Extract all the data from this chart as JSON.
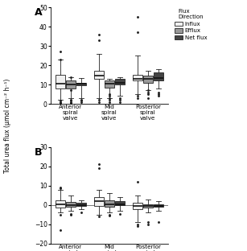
{
  "panel_A": {
    "ylim": [
      0,
      50
    ],
    "yticks": [
      0,
      10,
      20,
      30,
      40,
      50
    ],
    "groups": [
      "Anterior\nspiral\nvalve",
      "Mid\nspiral\nvalve",
      "Posterior\nspiral\nvalve"
    ],
    "influx": {
      "anterior": {
        "q1": 8,
        "median": 10.5,
        "q3": 15,
        "whislo": 2,
        "whishi": 23,
        "fliers": [
          0.5,
          1.0,
          1.5,
          23.0,
          27.0
        ]
      },
      "mid": {
        "q1": 13,
        "median": 14.5,
        "q3": 17,
        "whislo": 3,
        "whishi": 26,
        "fliers": [
          1.0,
          2.0,
          33.0,
          36.0
        ]
      },
      "posterior": {
        "q1": 12,
        "median": 13,
        "q3": 15,
        "whislo": 5,
        "whishi": 25,
        "fliers": [
          3.0,
          4.0,
          37.0,
          45.0
        ]
      }
    },
    "efflux": {
      "anterior": {
        "q1": 8,
        "median": 10,
        "q3": 12,
        "whislo": 3,
        "whishi": 14,
        "fliers": [
          0.5,
          1.0,
          1.5,
          2.0,
          7.0,
          14.0
        ]
      },
      "mid": {
        "q1": 8.5,
        "median": 10.5,
        "q3": 12,
        "whislo": 3,
        "whishi": 13,
        "fliers": [
          1.0,
          2.0,
          3.0,
          4.0,
          5.0
        ]
      },
      "posterior": {
        "q1": 11,
        "median": 13,
        "q3": 14.5,
        "whislo": 7,
        "whishi": 17,
        "fliers": [
          3.0,
          5.0,
          6.0,
          7.0
        ]
      }
    },
    "netflux": {
      "anterior": {
        "q1": 9.5,
        "median": 10.5,
        "q3": 11,
        "whislo": 3,
        "whishi": 13.5,
        "fliers": [
          1.0,
          1.5,
          2.0
        ]
      },
      "mid": {
        "q1": 10,
        "median": 11,
        "q3": 13,
        "whislo": 4,
        "whishi": 14,
        "fliers": [
          1.0,
          2.0,
          3.0
        ]
      },
      "posterior": {
        "q1": 12,
        "median": 13.5,
        "q3": 16.5,
        "whislo": 8,
        "whishi": 18,
        "fliers": [
          4.0,
          5.0,
          6.0
        ]
      }
    }
  },
  "panel_B": {
    "ylim": [
      -20,
      30
    ],
    "yticks": [
      -20,
      -10,
      0,
      10,
      20,
      30
    ],
    "groups": [
      "Anterior\nspiral\nvalve",
      "Mid\nspiral\nvalve",
      "Posterior\nspiral\nvalve"
    ],
    "influx": {
      "anterior": {
        "q1": -1.5,
        "median": 0.5,
        "q3": 2.5,
        "whislo": -4,
        "whishi": 8,
        "fliers": [
          -13.0,
          -5.0,
          8.5,
          9.0
        ]
      },
      "mid": {
        "q1": -0.5,
        "median": 2,
        "q3": 4,
        "whislo": -5,
        "whishi": 8,
        "fliers": [
          -6.0,
          19.0,
          21.0
        ]
      },
      "posterior": {
        "q1": -2,
        "median": -0.5,
        "q3": 1,
        "whislo": -9,
        "whishi": 5,
        "fliers": [
          12.0,
          -10.0,
          -11.0
        ]
      }
    },
    "efflux": {
      "anterior": {
        "q1": -1,
        "median": 0,
        "q3": 1.5,
        "whislo": -3,
        "whishi": 5,
        "fliers": [
          -4.5,
          -5.0
        ]
      },
      "mid": {
        "q1": -1,
        "median": 0.5,
        "q3": 2.5,
        "whislo": -4,
        "whishi": 6,
        "fliers": [
          -5.0,
          -5.5
        ]
      },
      "posterior": {
        "q1": -1.5,
        "median": -0.5,
        "q3": 0.5,
        "whislo": -4,
        "whishi": 3,
        "fliers": [
          -9.0,
          -10.0
        ]
      }
    },
    "netflux": {
      "anterior": {
        "q1": -0.5,
        "median": 0,
        "q3": 1,
        "whislo": -2,
        "whishi": 2.5,
        "fliers": [
          -4.0
        ]
      },
      "mid": {
        "q1": 0,
        "median": 0.5,
        "q3": 2,
        "whislo": -3,
        "whishi": 4,
        "fliers": [
          -4.5
        ]
      },
      "posterior": {
        "q1": -1,
        "median": -0.5,
        "q3": 0.5,
        "whislo": -3,
        "whishi": 2,
        "fliers": [
          -9.0
        ]
      }
    }
  },
  "influx_color": "#f0f0f0",
  "efflux_color": "#999999",
  "netflux_color": "#444444",
  "box_edgecolor": "#222222",
  "flier_color": "#222222",
  "ylabel": "Total urea flux (μmol cm⁻² h⁻¹)",
  "legend_title": "Flux\nDirection"
}
